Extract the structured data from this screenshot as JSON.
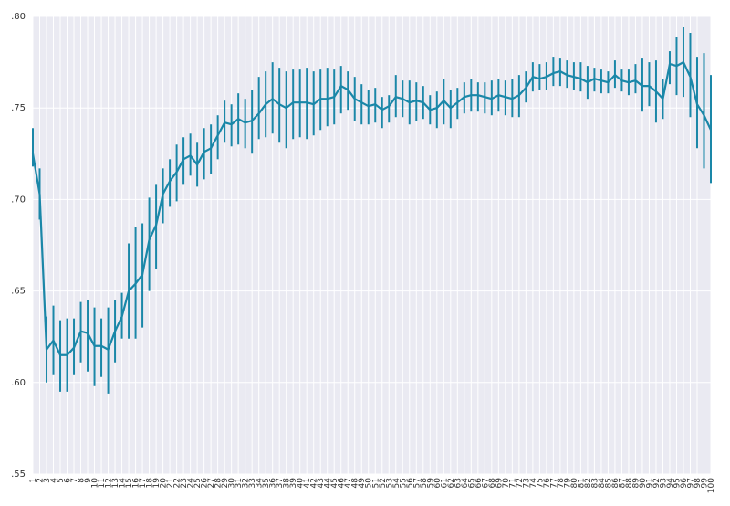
{
  "chart_data": {
    "type": "line",
    "title": "",
    "xlabel": "",
    "ylabel": "",
    "ylim": [
      0.55,
      0.8
    ],
    "yticks": [
      0.55,
      0.6,
      0.65,
      0.7,
      0.75,
      0.8
    ],
    "ytick_labels": [
      ".55",
      ".60",
      ".65",
      ".70",
      ".75",
      ".80"
    ],
    "grid": true,
    "colors": {
      "series": "#1a87a8",
      "plot_bg": "#eaeaf2",
      "grid": "#ffffff"
    },
    "x": [
      1,
      2,
      3,
      4,
      5,
      6,
      7,
      8,
      9,
      10,
      11,
      12,
      13,
      14,
      15,
      16,
      17,
      18,
      19,
      20,
      21,
      22,
      23,
      24,
      25,
      26,
      27,
      28,
      29,
      30,
      31,
      32,
      33,
      34,
      35,
      36,
      37,
      38,
      39,
      40,
      41,
      42,
      43,
      44,
      45,
      46,
      47,
      48,
      49,
      50,
      51,
      52,
      53,
      54,
      55,
      56,
      57,
      58,
      59,
      60,
      61,
      62,
      63,
      64,
      65,
      66,
      67,
      68,
      69,
      70,
      71,
      72,
      73,
      74,
      75,
      76,
      77,
      78,
      79,
      80,
      81,
      82,
      83,
      84,
      85,
      86,
      87,
      88,
      89,
      90,
      91,
      92,
      93,
      94,
      95,
      96,
      97,
      98,
      99,
      100
    ],
    "series": [
      {
        "values": [
          0.725,
          0.703,
          0.618,
          0.623,
          0.615,
          0.615,
          0.619,
          0.628,
          0.627,
          0.62,
          0.62,
          0.618,
          0.628,
          0.636,
          0.65,
          0.654,
          0.659,
          0.678,
          0.686,
          0.703,
          0.71,
          0.715,
          0.722,
          0.724,
          0.719,
          0.726,
          0.728,
          0.735,
          0.742,
          0.741,
          0.744,
          0.742,
          0.743,
          0.747,
          0.752,
          0.755,
          0.752,
          0.75,
          0.753,
          0.753,
          0.753,
          0.752,
          0.755,
          0.755,
          0.756,
          0.762,
          0.76,
          0.755,
          0.753,
          0.751,
          0.752,
          0.749,
          0.751,
          0.756,
          0.755,
          0.753,
          0.754,
          0.753,
          0.749,
          0.75,
          0.754,
          0.75,
          0.753,
          0.756,
          0.757,
          0.757,
          0.756,
          0.755,
          0.757,
          0.756,
          0.755,
          0.757,
          0.761,
          0.767,
          0.766,
          0.767,
          0.769,
          0.77,
          0.768,
          0.767,
          0.766,
          0.764,
          0.766,
          0.765,
          0.764,
          0.768,
          0.765,
          0.764,
          0.765,
          0.762,
          0.762,
          0.759,
          0.755,
          0.774,
          0.773,
          0.775,
          0.767,
          0.752,
          0.746,
          0.738
        ],
        "lower": [
          0.718,
          0.689,
          0.6,
          0.604,
          0.595,
          0.595,
          0.604,
          0.611,
          0.606,
          0.598,
          0.603,
          0.594,
          0.611,
          0.624,
          0.624,
          0.624,
          0.63,
          0.65,
          0.662,
          0.687,
          0.696,
          0.699,
          0.708,
          0.713,
          0.707,
          0.711,
          0.714,
          0.722,
          0.731,
          0.729,
          0.73,
          0.728,
          0.725,
          0.733,
          0.734,
          0.736,
          0.731,
          0.728,
          0.733,
          0.734,
          0.733,
          0.735,
          0.738,
          0.74,
          0.741,
          0.747,
          0.749,
          0.743,
          0.741,
          0.741,
          0.742,
          0.739,
          0.742,
          0.745,
          0.745,
          0.741,
          0.743,
          0.744,
          0.741,
          0.739,
          0.741,
          0.739,
          0.744,
          0.747,
          0.748,
          0.748,
          0.747,
          0.746,
          0.748,
          0.746,
          0.745,
          0.745,
          0.753,
          0.759,
          0.76,
          0.76,
          0.762,
          0.762,
          0.761,
          0.76,
          0.759,
          0.755,
          0.759,
          0.758,
          0.758,
          0.761,
          0.759,
          0.757,
          0.758,
          0.748,
          0.751,
          0.742,
          0.744,
          0.763,
          0.757,
          0.756,
          0.745,
          0.728,
          0.717,
          0.709
        ],
        "upper": [
          0.739,
          0.717,
          0.636,
          0.642,
          0.634,
          0.635,
          0.635,
          0.644,
          0.645,
          0.641,
          0.635,
          0.641,
          0.645,
          0.649,
          0.676,
          0.685,
          0.687,
          0.701,
          0.708,
          0.717,
          0.722,
          0.73,
          0.734,
          0.736,
          0.731,
          0.739,
          0.741,
          0.746,
          0.754,
          0.752,
          0.758,
          0.755,
          0.76,
          0.767,
          0.77,
          0.775,
          0.772,
          0.77,
          0.771,
          0.771,
          0.772,
          0.77,
          0.771,
          0.772,
          0.771,
          0.773,
          0.77,
          0.767,
          0.763,
          0.76,
          0.761,
          0.756,
          0.757,
          0.768,
          0.765,
          0.765,
          0.764,
          0.762,
          0.757,
          0.759,
          0.766,
          0.76,
          0.761,
          0.764,
          0.766,
          0.764,
          0.764,
          0.765,
          0.766,
          0.765,
          0.766,
          0.768,
          0.77,
          0.775,
          0.774,
          0.775,
          0.778,
          0.777,
          0.776,
          0.775,
          0.775,
          0.773,
          0.772,
          0.771,
          0.77,
          0.776,
          0.771,
          0.771,
          0.774,
          0.777,
          0.775,
          0.776,
          0.766,
          0.781,
          0.789,
          0.794,
          0.791,
          0.778,
          0.78,
          0.768
        ]
      }
    ]
  }
}
